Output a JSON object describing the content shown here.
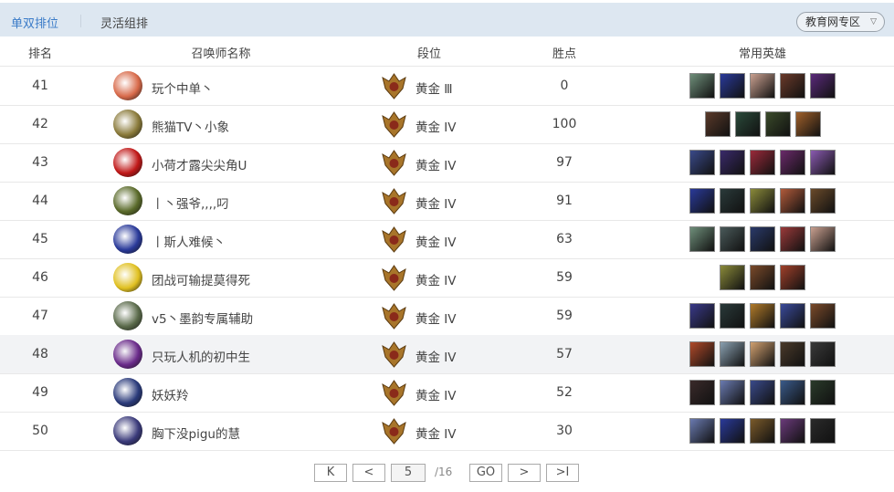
{
  "tabs": {
    "active": "单双排位",
    "other": "灵活组排"
  },
  "region": {
    "label": "教育网专区",
    "icon": "chevron-down-icon"
  },
  "columns": [
    "排名",
    "召唤师名称",
    "段位",
    "胜点",
    "常用英雄"
  ],
  "rows": [
    {
      "rank": "41",
      "name": "玩个中单丶",
      "tier": "黄金 Ⅲ",
      "points": "0",
      "avatar": "#d86a4a",
      "heroes": [
        "#6f8f7a",
        "#2a3a9a",
        "#c9a090",
        "#6a3a2a",
        "#5a2a7a"
      ]
    },
    {
      "rank": "42",
      "name": "熊猫TV丶小象",
      "tier": "黄金 IV",
      "points": "100",
      "avatar": "#8a7a3a",
      "heroes": [
        "#5a3a2a",
        "#2a4a3a",
        "#3a4a2a",
        "#a0602a"
      ]
    },
    {
      "rank": "43",
      "name": "小荷才露尖尖角U",
      "tier": "黄金 IV",
      "points": "97",
      "avatar": "#c01818",
      "heroes": [
        "#3a4a8a",
        "#3a2a6a",
        "#9a2a3a",
        "#6a2a6a",
        "#8a5ab0"
      ]
    },
    {
      "rank": "44",
      "name": "丨丶强爷,,,,叼",
      "tier": "黄金 IV",
      "points": "91",
      "avatar": "#5a6a2a",
      "heroes": [
        "#2a3a9a",
        "#2a3a3a",
        "#8a8a3a",
        "#b05a3a",
        "#6a4a2a"
      ]
    },
    {
      "rank": "45",
      "name": "丨斯人难候丶",
      "tier": "黄金 IV",
      "points": "63",
      "avatar": "#2a3a9a",
      "heroes": [
        "#6f8f7a",
        "#4a5a5a",
        "#2a3a6a",
        "#9a3a3a",
        "#c9a090"
      ]
    },
    {
      "rank": "46",
      "name": "团战可输提莫得死",
      "tier": "黄金 IV",
      "points": "59",
      "avatar": "#e0c020",
      "heroes": [
        "#8a8a3a",
        "#7a4a2a",
        "#a0402a"
      ]
    },
    {
      "rank": "47",
      "name": "v5丶墨韵专属辅助",
      "tier": "黄金 IV",
      "points": "59",
      "avatar": "#5a6a4a",
      "heroes": [
        "#3a3a8a",
        "#2a3a3a",
        "#b07a2a",
        "#3a4a9a",
        "#7a4a2a"
      ]
    },
    {
      "rank": "48",
      "name": "只玩人机的初中生",
      "tier": "黄金 IV",
      "points": "57",
      "avatar": "#6a2a8a",
      "heroes": [
        "#b04a2a",
        "#8aa0b0",
        "#d0a070",
        "#4a3a2a",
        "#3a3a3a"
      ]
    },
    {
      "rank": "49",
      "name": "妖妖羚",
      "tier": "黄金 IV",
      "points": "52",
      "avatar": "#2a3a7a",
      "heroes": [
        "#3a2a2a",
        "#6a7ab0",
        "#3a4a8a",
        "#3a5a8a",
        "#2a3a2a"
      ]
    },
    {
      "rank": "50",
      "name": "胸下没pigu的慧",
      "tier": "黄金 IV",
      "points": "30",
      "avatar": "#3a3a7a",
      "heroes": [
        "#6a7ab0",
        "#2a3a9a",
        "#7a5a2a",
        "#6a3a7a",
        "#2a2a2a"
      ]
    }
  ],
  "pagination": {
    "first": "K",
    "prev": "<",
    "page": "5",
    "total": "/16",
    "go": "GO",
    "next": ">",
    "last": ">I"
  }
}
